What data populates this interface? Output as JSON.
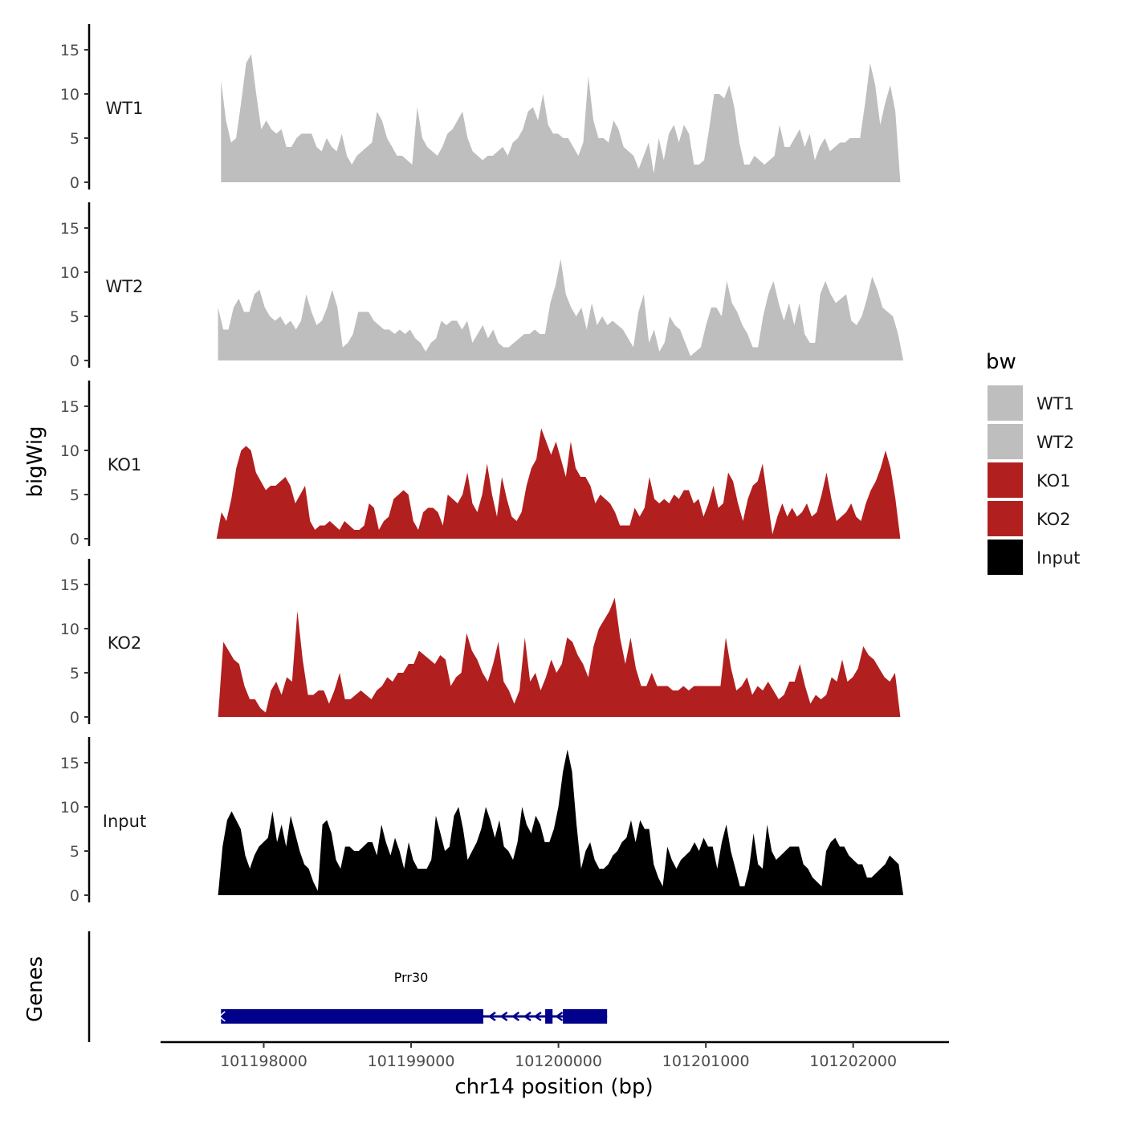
{
  "chart_data": {
    "type": "area",
    "chromosome": "chr14",
    "xlabel": "chr14 position (bp)",
    "ylabel": "bigWig",
    "genes_label": "Genes",
    "xlim": [
      101197300,
      101202650
    ],
    "x_ticks": [
      101198000,
      101199000,
      101200000,
      101201000,
      101202000
    ],
    "x_tick_labels": [
      "101198000",
      "101199000",
      "101200000",
      "101201000",
      "101202000"
    ],
    "ylim": [
      0,
      17.5
    ],
    "y_ticks": [
      0,
      5,
      10,
      15
    ],
    "y_tick_labels": [
      "0",
      "5",
      "10",
      "15"
    ],
    "legend": {
      "title": "bw",
      "entries": [
        {
          "name": "WT1",
          "color": "#bebebe"
        },
        {
          "name": "WT2",
          "color": "#bebebe"
        },
        {
          "name": "KO1",
          "color": "#b21f1f"
        },
        {
          "name": "KO2",
          "color": "#b21f1f"
        },
        {
          "name": "Input",
          "color": "#000000"
        }
      ]
    },
    "tracks": [
      {
        "name": "WT1",
        "color": "#bebebe",
        "x_start": 101197710,
        "x_end": 101202320,
        "values": [
          11.5,
          7,
          4.5,
          5,
          9,
          13.5,
          14.5,
          10,
          6,
          7,
          6,
          5.5,
          6,
          4,
          4,
          5,
          5.5,
          5.5,
          5.5,
          4,
          3.5,
          5,
          4,
          3.5,
          5.5,
          3,
          2,
          3,
          3.5,
          4,
          4.5,
          8,
          7,
          5,
          4,
          3,
          3,
          2.5,
          2,
          8.5,
          5,
          4,
          3.5,
          3,
          4,
          5.5,
          6,
          7,
          8,
          5,
          3.5,
          3,
          2.5,
          3,
          3,
          3.5,
          4,
          3,
          4.5,
          5,
          6,
          8,
          8.5,
          7,
          10,
          6.5,
          5.5,
          5.5,
          5,
          5,
          4,
          3,
          4.5,
          12,
          7,
          5,
          5,
          4.5,
          7,
          6,
          4,
          3.5,
          3,
          1.5,
          3,
          4.5,
          1,
          5,
          2.5,
          5.5,
          6.5,
          4.5,
          6.5,
          5.5,
          2,
          2,
          2.5,
          6,
          10,
          10,
          9.5,
          11,
          8.5,
          4.5,
          2,
          2,
          3,
          2.5,
          2,
          2.5,
          3,
          6.5,
          4,
          4,
          5,
          6,
          4,
          5.5,
          2.5,
          4,
          5,
          3.5,
          4,
          4.5,
          4.5,
          5,
          5,
          5,
          9,
          13.5,
          11,
          6.5,
          9,
          11,
          8,
          0
        ]
      },
      {
        "name": "WT2",
        "color": "#bebebe",
        "x_start": 101197690,
        "x_end": 101202340,
        "values": [
          6,
          3.5,
          3.5,
          6,
          7,
          5.5,
          5.5,
          7.5,
          8,
          6,
          5,
          4.5,
          5,
          4,
          4.5,
          3.5,
          4.5,
          7.5,
          5.5,
          4,
          4.5,
          6,
          8,
          6,
          1.5,
          2,
          3,
          5.5,
          5.5,
          5.5,
          4.5,
          4,
          3.5,
          3.5,
          3,
          3.5,
          3,
          3.5,
          2.5,
          2,
          1,
          2,
          2.5,
          4.5,
          4,
          4.5,
          4.5,
          3.5,
          4.5,
          2,
          3,
          4,
          2.5,
          3.5,
          2,
          1.5,
          1.5,
          2,
          2.5,
          3,
          3,
          3.5,
          3,
          3,
          6.5,
          8.5,
          11.5,
          7.5,
          6,
          5,
          6,
          3.5,
          6.5,
          4,
          5,
          4,
          4.5,
          4,
          3.5,
          2.5,
          1.5,
          5.5,
          7.5,
          2,
          3.5,
          1,
          2,
          5,
          4,
          3.5,
          2,
          0.5,
          1,
          1.5,
          4,
          6,
          6,
          5,
          9,
          6.5,
          5.5,
          4,
          3,
          1.5,
          1.5,
          5,
          7.5,
          9,
          6.5,
          4.5,
          6.5,
          4,
          6.5,
          3,
          2,
          2,
          7.5,
          9,
          7.5,
          6.5,
          7,
          7.5,
          4.5,
          4,
          5,
          7,
          9.5,
          8,
          6,
          5.5,
          5,
          3,
          0
        ]
      },
      {
        "name": "KO1",
        "color": "#b21f1f",
        "x_start": 101197680,
        "x_end": 101202320,
        "values": [
          0,
          3,
          2,
          4.5,
          8,
          10,
          10.5,
          10,
          7.5,
          6.5,
          5.5,
          6,
          6,
          6.5,
          7,
          6,
          4,
          5,
          6,
          2,
          1,
          1.5,
          1.5,
          2,
          1.5,
          1,
          2,
          1.5,
          1,
          1,
          1.5,
          4,
          3.5,
          1,
          2,
          2.5,
          4.5,
          5,
          5.5,
          5,
          2,
          1,
          3,
          3.5,
          3.5,
          3,
          1.5,
          5,
          4.5,
          4,
          5,
          7.5,
          4,
          3,
          5,
          8.5,
          5,
          2.5,
          7,
          4.5,
          2.5,
          2,
          3,
          6,
          8,
          9,
          12.5,
          11,
          9.5,
          11,
          9,
          7,
          11,
          8,
          7,
          7,
          6,
          4,
          5,
          4.5,
          4,
          3,
          1.5,
          1.5,
          1.5,
          3.5,
          2.5,
          3.5,
          7,
          4.5,
          4,
          4.5,
          4,
          5,
          4.5,
          5.5,
          5.5,
          4,
          4.5,
          2.5,
          4,
          6,
          3.5,
          4,
          7.5,
          6.5,
          4,
          2,
          4.5,
          6,
          6.5,
          8.5,
          4.5,
          0.5,
          2.5,
          4,
          2.5,
          3.5,
          2.5,
          3,
          4,
          2.5,
          3,
          5,
          7.5,
          4.5,
          2,
          2.5,
          3,
          4,
          2.5,
          2,
          4,
          5.5,
          6.5,
          8,
          10,
          8,
          4.5,
          0
        ]
      },
      {
        "name": "KO2",
        "color": "#b21f1f",
        "x_start": 101197690,
        "x_end": 101202320,
        "values": [
          0,
          8.5,
          7.5,
          6.5,
          6,
          3.5,
          2,
          2,
          1,
          0.5,
          3,
          4,
          2.5,
          4.5,
          4,
          12,
          6.5,
          2.5,
          2.5,
          3,
          3,
          1.5,
          3,
          5,
          2,
          2,
          2.5,
          3,
          2.5,
          2,
          3,
          3.5,
          4.5,
          4,
          5,
          5,
          6,
          6,
          7.5,
          7,
          6.5,
          6,
          7,
          6.5,
          3.5,
          4.5,
          5,
          9.5,
          7.5,
          6.5,
          5,
          4,
          6,
          8.5,
          4,
          3,
          1.5,
          3,
          9,
          4,
          5,
          3,
          4.5,
          6.5,
          5,
          6,
          9,
          8.5,
          7,
          6,
          4.5,
          8,
          10,
          11,
          12,
          13.5,
          9,
          6,
          9,
          5.5,
          3.5,
          3.5,
          5,
          3.5,
          3.5,
          3.5,
          3,
          3,
          3.5,
          3,
          3.5,
          3.5,
          3.5,
          3.5,
          3.5,
          3.5,
          9,
          5.5,
          3,
          3.5,
          4.5,
          2.5,
          3.5,
          3,
          4,
          3,
          2,
          2.5,
          4,
          4,
          6,
          3.5,
          1.5,
          2.5,
          2,
          2.5,
          4.5,
          4,
          6.5,
          4,
          4.5,
          5.5,
          8,
          7,
          6.5,
          5.5,
          4.5,
          4,
          5,
          0
        ]
      },
      {
        "name": "Input",
        "color": "#000000",
        "x_start": 101197690,
        "x_end": 101202340,
        "values": [
          0,
          5.5,
          8.5,
          9.5,
          8.5,
          7.5,
          4.5,
          3,
          4.5,
          5.5,
          6,
          6.5,
          9.5,
          6,
          8,
          5.5,
          9,
          7,
          5,
          3.5,
          3,
          1.5,
          0.5,
          8,
          8.5,
          7,
          4,
          3,
          5.5,
          5.5,
          5,
          5,
          5.5,
          6,
          6,
          4.5,
          8,
          6,
          4.5,
          6.5,
          5,
          3,
          6,
          4,
          3,
          3,
          3,
          4,
          9,
          7,
          5,
          5.5,
          9,
          10,
          7.5,
          4,
          5,
          6,
          7.5,
          10,
          8.5,
          6.5,
          8.5,
          5.5,
          5,
          4,
          6,
          10,
          8,
          7,
          9,
          8,
          6,
          6,
          7.5,
          10,
          14,
          16.5,
          14,
          8,
          3,
          5,
          6,
          4,
          3,
          3,
          3.5,
          4.5,
          5,
          6,
          6.5,
          8.5,
          6,
          8.5,
          7.5,
          7.5,
          3.5,
          2,
          1,
          5.5,
          4,
          3,
          4,
          4.5,
          5,
          6,
          5,
          6.5,
          5.5,
          5.5,
          3,
          6,
          8,
          5,
          3,
          1,
          1,
          3,
          7,
          3.5,
          3,
          8,
          5,
          4,
          4.5,
          5,
          5.5,
          5.5,
          5.5,
          3.5,
          3,
          2,
          1.5,
          1,
          5,
          6,
          6.5,
          5.5,
          5.5,
          4.5,
          4,
          3.5,
          3.5,
          2,
          2,
          2.5,
          3,
          3.5,
          4.5,
          4,
          3.5,
          0
        ]
      }
    ],
    "genes": [
      {
        "name": "Prr30",
        "color": "#00008b",
        "strand": "-",
        "start": 101197710,
        "end": 101200330,
        "thick": [
          [
            101197710,
            101199490
          ],
          [
            101199910,
            101199960
          ],
          [
            101200030,
            101200330
          ]
        ],
        "intron_arrows": [
          101199550,
          101199630,
          101199710,
          101199790,
          101199860,
          101200005
        ]
      }
    ]
  }
}
